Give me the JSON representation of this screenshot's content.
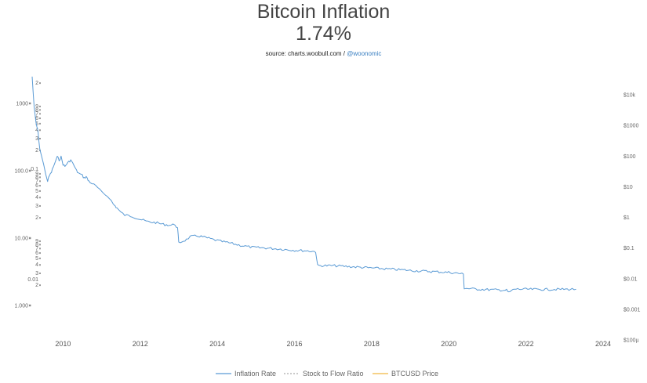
{
  "header": {
    "title": "Bitcoin Inflation",
    "value": "1.74%",
    "source_prefix": "source: charts.woobull.com / ",
    "source_handle": "@woonomic"
  },
  "chart_data": {
    "type": "line",
    "title": "Bitcoin Inflation",
    "subtitle": "1.74%",
    "x_ticks": [
      "2010",
      "2012",
      "2014",
      "2016",
      "2018",
      "2020",
      "2022",
      "2024"
    ],
    "x_range": [
      2009.2,
      2024.0
    ],
    "left_axis_labels": [
      "1000",
      "100.0",
      "10.00",
      "1.000"
    ],
    "left_axis_values": [
      1000,
      100,
      10,
      1
    ],
    "left_minor_labels": [
      "0.1",
      "0.01"
    ],
    "right_axis_labels": [
      "$10k",
      "$1000",
      "$100",
      "$10",
      "$1",
      "$0.1",
      "$0.01",
      "$0.001",
      "$100µ"
    ],
    "legend": [
      "Inflation Rate",
      "Stock to Flow Ratio",
      "BTCUSD Price"
    ],
    "colors": {
      "inflation": "#5b9bd5",
      "s2f": "#aaaaaa",
      "price": "#f0b840"
    },
    "series": [
      {
        "name": "Inflation Rate",
        "unit": "%",
        "x": [
          2009.2,
          2009.25,
          2009.3,
          2009.35,
          2009.4,
          2009.5,
          2009.6,
          2009.65,
          2009.7,
          2009.75,
          2009.85,
          2009.9,
          2009.95,
          2010.0,
          2010.05,
          2010.1,
          2010.15,
          2010.2,
          2010.3,
          2010.35,
          2010.4,
          2010.5,
          2010.55,
          2010.6,
          2010.65,
          2010.7,
          2010.8,
          2010.9,
          2011.0,
          2011.1,
          2011.2,
          2011.3,
          2011.35,
          2011.4,
          2011.5,
          2011.6,
          2011.7,
          2011.8,
          2012.0,
          2012.2,
          2012.4,
          2012.6,
          2012.8,
          2012.9,
          2012.97,
          2013.0,
          2013.2,
          2013.3,
          2013.5,
          2013.7,
          2013.9,
          2014.0,
          2014.3,
          2014.6,
          2014.9,
          2015.3,
          2015.6,
          2016.0,
          2016.3,
          2016.55,
          2016.6,
          2017.0,
          2017.5,
          2018.0,
          2018.5,
          2018.9,
          2019.0,
          2019.5,
          2020.0,
          2020.3,
          2020.38,
          2020.4,
          2020.7,
          2021.0,
          2021.3,
          2021.5,
          2021.55,
          2021.7,
          2022.0,
          2022.5,
          2022.9,
          2023.2,
          2023.3
        ],
        "values": [
          2500,
          900,
          520,
          380,
          210,
          120,
          70,
          85,
          95,
          115,
          160,
          145,
          160,
          125,
          115,
          128,
          135,
          145,
          115,
          100,
          92,
          85,
          78,
          82,
          72,
          68,
          62,
          56,
          48,
          44,
          40,
          32,
          30,
          28,
          24,
          22,
          21.5,
          21,
          19,
          17.5,
          17,
          16,
          15.5,
          16,
          14,
          8.5,
          9.5,
          10.5,
          10.8,
          10.2,
          9.5,
          9.2,
          8.5,
          7.8,
          7.3,
          7.1,
          6.9,
          6.6,
          6.5,
          6.3,
          3.9,
          3.9,
          3.75,
          3.6,
          3.45,
          3.35,
          3.3,
          3.2,
          3.1,
          2.98,
          2.9,
          1.8,
          1.75,
          1.72,
          1.7,
          1.68,
          1.55,
          1.75,
          1.74,
          1.73,
          1.74,
          1.74,
          1.74
        ]
      },
      {
        "name": "Stock to Flow Ratio",
        "values": []
      },
      {
        "name": "BTCUSD Price",
        "values": []
      }
    ],
    "grid": false,
    "legend_position": "bottom-center"
  }
}
